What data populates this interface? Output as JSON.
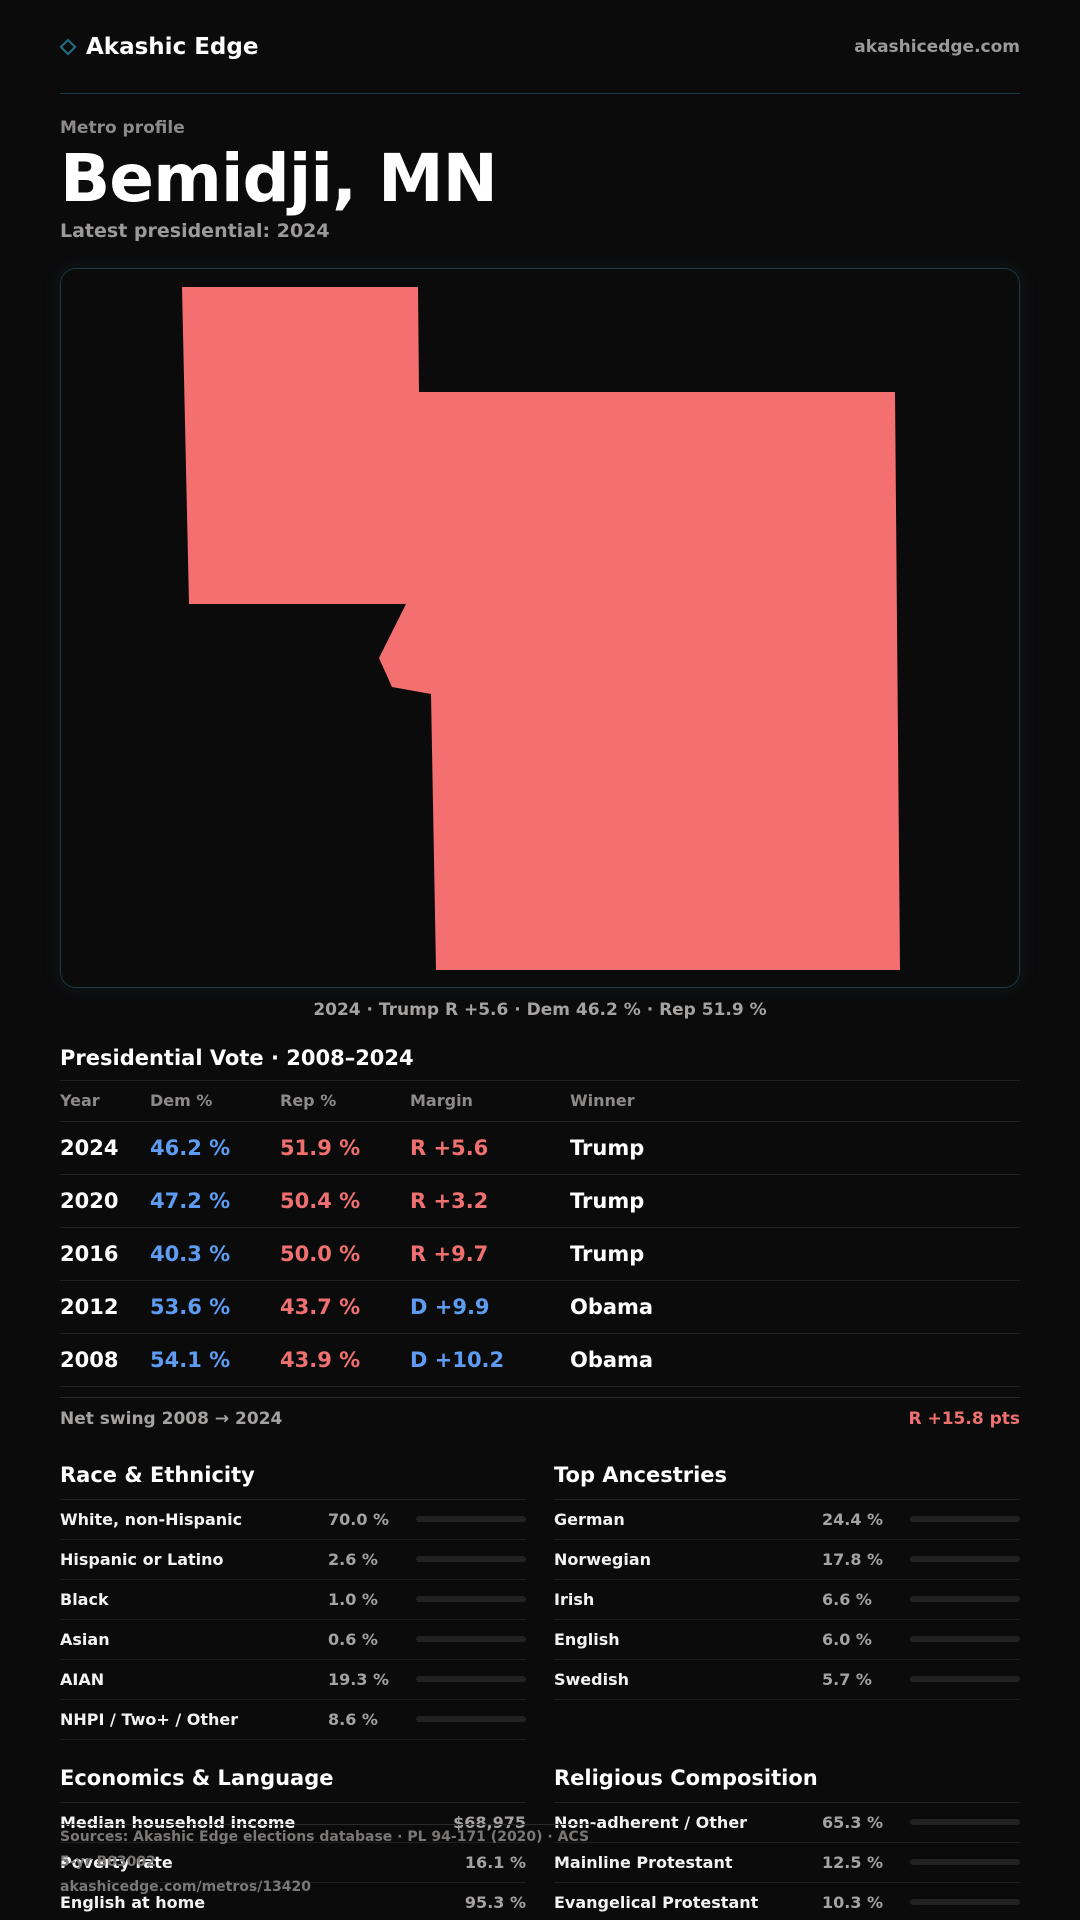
{
  "header": {
    "brand": "Akashic Edge",
    "site": "akashicedge.com"
  },
  "profile": {
    "kicker": "Metro profile",
    "title": "Bemidji, MN",
    "subtitle": "Latest presidential: 2024"
  },
  "map": {
    "fill_color": "#f46f6f",
    "caption": "2024 · Trump R +5.6 · Dem 46.2 % · Rep 51.9 %"
  },
  "presidential": {
    "title": "Presidential Vote · 2008–2024",
    "columns": [
      "Year",
      "Dem %",
      "Rep %",
      "Margin",
      "Winner"
    ],
    "rows": [
      {
        "year": "2024",
        "dem": "46.2 %",
        "rep": "51.9 %",
        "margin": "R +5.6",
        "party": "R",
        "winner": "Trump"
      },
      {
        "year": "2020",
        "dem": "47.2 %",
        "rep": "50.4 %",
        "margin": "R +3.2",
        "party": "R",
        "winner": "Trump"
      },
      {
        "year": "2016",
        "dem": "40.3 %",
        "rep": "50.0 %",
        "margin": "R +9.7",
        "party": "R",
        "winner": "Trump"
      },
      {
        "year": "2012",
        "dem": "53.6 %",
        "rep": "43.7 %",
        "margin": "D +9.9",
        "party": "D",
        "winner": "Obama"
      },
      {
        "year": "2008",
        "dem": "54.1 %",
        "rep": "43.9 %",
        "margin": "D +10.2",
        "party": "D",
        "winner": "Obama"
      }
    ],
    "swing_label": "Net swing 2008 → 2024",
    "swing_value": "R +15.8 pts"
  },
  "race": {
    "title": "Race & Ethnicity",
    "rows": [
      {
        "label": "White, non-Hispanic",
        "value": "70.0 %",
        "share": 0.7
      },
      {
        "label": "Hispanic or Latino",
        "value": "2.6 %",
        "share": 0.026
      },
      {
        "label": "Black",
        "value": "1.0 %",
        "share": 0.01
      },
      {
        "label": "Asian",
        "value": "0.6 %",
        "share": 0.006
      },
      {
        "label": "AIAN",
        "value": "19.3 %",
        "share": 0.193
      },
      {
        "label": "NHPI / Two+ / Other",
        "value": "8.6 %",
        "share": 0.086
      }
    ]
  },
  "ancestry": {
    "title": "Top Ancestries",
    "rows": [
      {
        "label": "German",
        "value": "24.4 %",
        "share": 0.244
      },
      {
        "label": "Norwegian",
        "value": "17.8 %",
        "share": 0.178
      },
      {
        "label": "Irish",
        "value": "6.6 %",
        "share": 0.066
      },
      {
        "label": "English",
        "value": "6.0 %",
        "share": 0.06
      },
      {
        "label": "Swedish",
        "value": "5.7 %",
        "share": 0.057
      }
    ]
  },
  "economics": {
    "title": "Economics & Language",
    "rows": [
      {
        "label": "Median household income",
        "value": "$68,975"
      },
      {
        "label": "Poverty rate",
        "value": "16.1 %"
      },
      {
        "label": "English at home",
        "value": "95.3 %"
      }
    ]
  },
  "religion": {
    "title": "Religious Composition",
    "rows": [
      {
        "label": "Non-adherent / Other",
        "value": "65.3 %",
        "share": 0.653
      },
      {
        "label": "Mainline Protestant",
        "value": "12.5 %",
        "share": 0.125
      },
      {
        "label": "Evangelical Protestant",
        "value": "10.3 %",
        "share": 0.103
      }
    ]
  },
  "footer": {
    "source": "Sources: Akashic Edge elections database · PL 94-171 (2020) · ACS 5-yr B03002",
    "url": "akashicedge.com/metros/13420"
  }
}
